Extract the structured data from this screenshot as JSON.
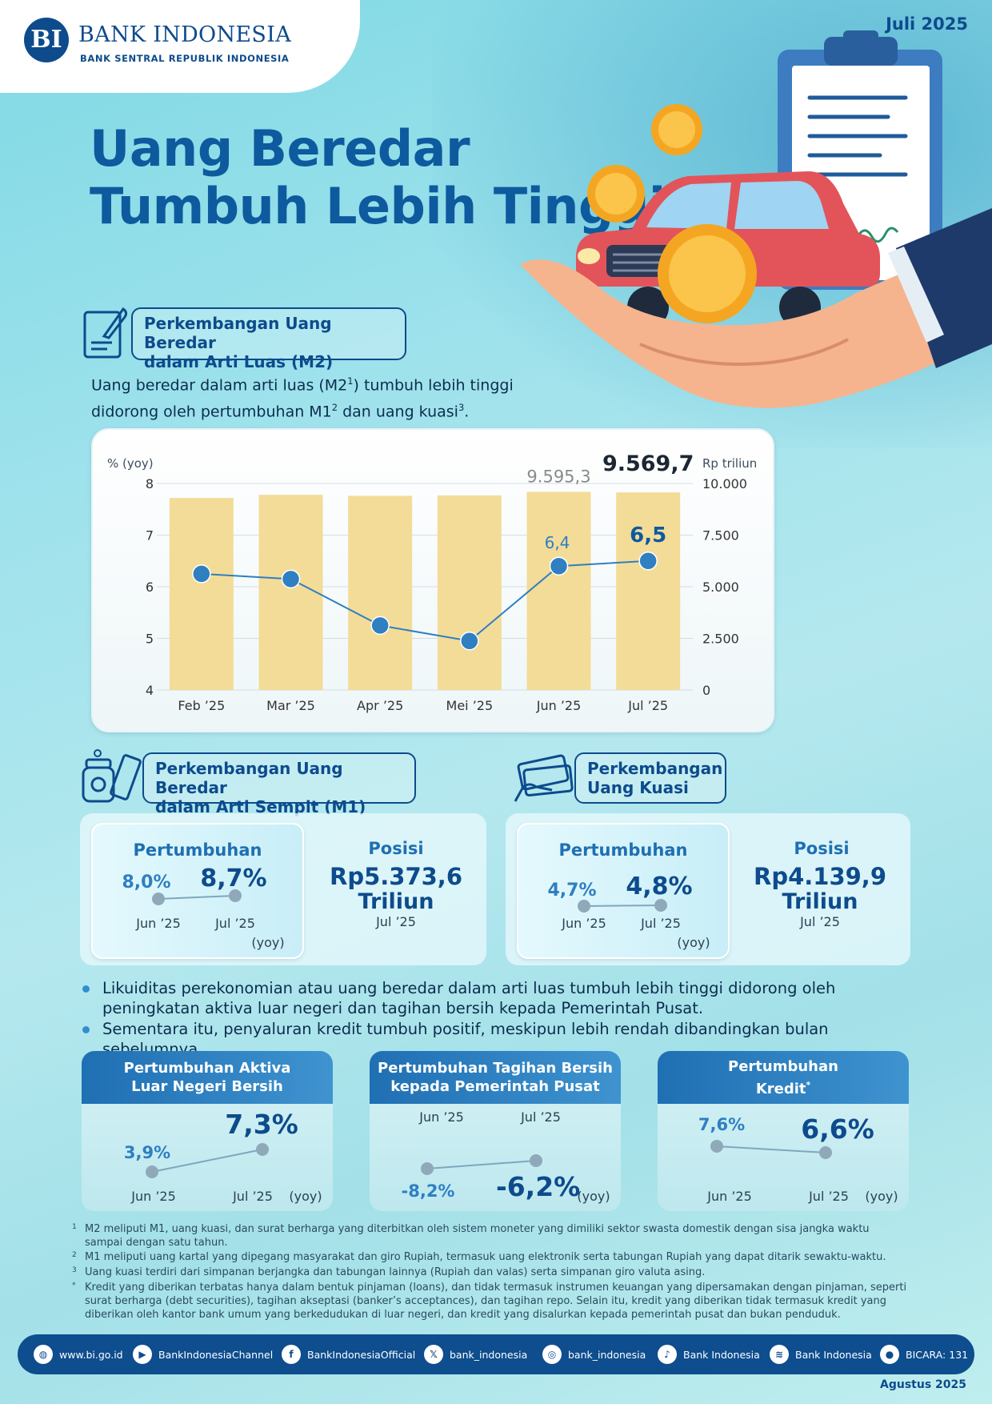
{
  "header": {
    "logo_name": "BANK INDONESIA",
    "logo_sub": "BANK SENTRAL REPUBLIK INDONESIA",
    "logo_mark": "BI",
    "date": "Juli 2025"
  },
  "headline": {
    "line1": "Uang Beredar",
    "line2": "Tumbuh Lebih Tinggi"
  },
  "m2": {
    "title_line1": "Perkembangan Uang Beredar",
    "title_line2": "dalam Arti Luas (M2)",
    "intro_a": "Uang beredar dalam arti luas (M2",
    "intro_sup1": "1",
    "intro_b": ") tumbuh lebih tinggi",
    "intro_c": "didorong oleh pertumbuhan M1",
    "intro_sup2": "2",
    "intro_d": " dan uang kuasi",
    "intro_sup3": "3",
    "intro_e": "."
  },
  "chart_data": {
    "type": "bar",
    "categories": [
      "Feb ’25",
      "Mar ’25",
      "Apr ’25",
      "Mei ’25",
      "Jun ’25",
      "Jul ’25"
    ],
    "ylabel": "% (yoy)",
    "y2label": "Rp triliun",
    "ylim": [
      4,
      8
    ],
    "y_ticks": [
      "4",
      "5",
      "6",
      "7",
      "8"
    ],
    "y2lim": [
      0,
      10000
    ],
    "y2_ticks": [
      "0",
      "2.500",
      "5.000",
      "7.500",
      "10.000"
    ],
    "grid": true,
    "series": [
      {
        "type": "bar",
        "axis": "right",
        "values": [
          9300,
          9450,
          9400,
          9420,
          9595.3,
          9569.7
        ],
        "color": "#f3dc98"
      },
      {
        "type": "line",
        "axis": "left",
        "values": [
          6.25,
          6.15,
          5.25,
          4.95,
          6.4,
          6.5
        ],
        "color": "#2f7fc1"
      }
    ],
    "bar_labels": {
      "jun": "9.595,3",
      "jul": "9.569,7"
    },
    "line_labels": {
      "jun": "6,4",
      "jul": "6,5"
    }
  },
  "m1": {
    "title_line1": "Perkembangan Uang Beredar",
    "title_line2": "dalam Arti Sempit (M1)",
    "growth_title": "Pertumbuhan",
    "prev_value": "8,0%",
    "curr_value": "8,7%",
    "prev_label": "Jun ’25",
    "curr_label": "Jul ’25",
    "unit": "(yoy)",
    "position_title": "Posisi",
    "position_value": "Rp5.373,6",
    "position_unit": "Triliun",
    "position_period": "Jul ’25"
  },
  "kuasi": {
    "title_line1": "Perkembangan",
    "title_line2": "Uang Kuasi",
    "growth_title": "Pertumbuhan",
    "prev_value": "4,7%",
    "curr_value": "4,8%",
    "prev_label": "Jun ’25",
    "curr_label": "Jul ’25",
    "unit": "(yoy)",
    "position_title": "Posisi",
    "position_value": "Rp4.139,9",
    "position_unit": "Triliun",
    "position_period": "Jul ’25"
  },
  "bullets": [
    "Likuiditas perekonomian atau uang beredar dalam arti luas tumbuh lebih tinggi didorong oleh peningkatan aktiva luar negeri dan tagihan bersih kepada Pemerintah Pusat.",
    "Sementara itu, penyaluran kredit tumbuh positif, meskipun lebih rendah dibandingkan bulan sebelumnya."
  ],
  "cards": {
    "aktiva": {
      "title_line1": "Pertumbuhan Aktiva",
      "title_line2": "Luar Negeri Bersih",
      "prev": "3,9%",
      "curr": "7,3%",
      "prev_label": "Jun ’25",
      "curr_label": "Jul ’25",
      "unit": "(yoy)"
    },
    "tagihan": {
      "title_line1": "Pertumbuhan Tagihan Bersih",
      "title_line2": "kepada Pemerintah Pusat",
      "prev": "-8,2%",
      "curr": "-6,2%",
      "prev_label": "Jun ’25",
      "curr_label": "Jul ’25",
      "unit": "(yoy)"
    },
    "kredit": {
      "title_line1": "Pertumbuhan",
      "title_line2": "Kredit",
      "title_sup": "*",
      "prev": "7,6%",
      "curr": "6,6%",
      "prev_label": "Jun ’25",
      "curr_label": "Jul ’25",
      "unit": "(yoy)"
    }
  },
  "footnotes": [
    {
      "mark": "1",
      "text": "M2 meliputi M1, uang kuasi, dan surat berharga yang diterbitkan oleh sistem moneter yang dimiliki sektor swasta domestik dengan sisa jangka waktu sampai dengan satu tahun."
    },
    {
      "mark": "2",
      "text": "M1 meliputi uang kartal yang dipegang masyarakat dan giro Rupiah, termasuk uang elektronik serta tabungan Rupiah yang dapat ditarik sewaktu-waktu."
    },
    {
      "mark": "3",
      "text": "Uang kuasi terdiri dari simpanan berjangka dan tabungan lainnya (Rupiah dan valas) serta simpanan giro valuta asing."
    },
    {
      "mark": "*",
      "text": "Kredit yang diberikan terbatas hanya dalam bentuk pinjaman (loans), dan tidak termasuk instrumen keuangan yang dipersamakan dengan pinjaman, seperti surat berharga (debt securities), tagihan akseptasi (banker’s acceptances), dan tagihan repo. Selain itu, kredit yang diberikan tidak termasuk kredit yang diberikan oleh kantor bank umum yang berkedudukan di luar negeri, dan kredit yang disalurkan kepada pemerintah pusat dan bukan penduduk."
    }
  ],
  "social": [
    {
      "icon": "globe-icon",
      "label": "www.bi.go.id"
    },
    {
      "icon": "youtube-icon",
      "label": "BankIndonesiaChannel"
    },
    {
      "icon": "facebook-icon",
      "label": "BankIndonesiaOfficial"
    },
    {
      "icon": "x-icon",
      "label": "bank_indonesia"
    },
    {
      "icon": "instagram-icon",
      "label": "bank_indonesia"
    },
    {
      "icon": "tiktok-icon",
      "label": "Bank Indonesia"
    },
    {
      "icon": "spotify-icon",
      "label": "Bank Indonesia"
    },
    {
      "icon": "podcast-icon",
      "label": "BICARA: 131"
    }
  ],
  "footer_date": "Agustus 2025"
}
